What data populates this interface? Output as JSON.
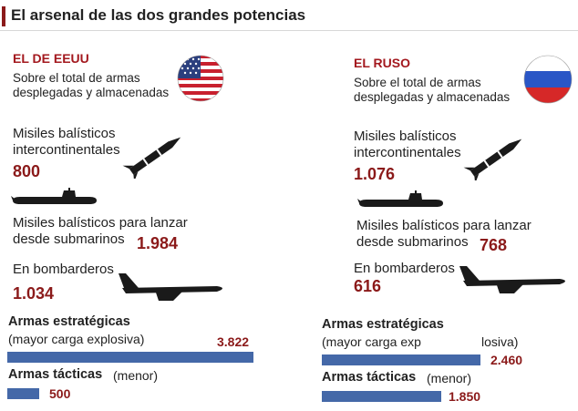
{
  "title": "El arsenal de las dos grandes potencias",
  "colors": {
    "accent": "#8b1a1a",
    "bar": "#4468a8",
    "country": "#a3181e"
  },
  "icons": {
    "flag_us": "us-flag-icon",
    "flag_ru": "russia-flag-icon",
    "missile": "missile-icon",
    "submarine": "submarine-icon",
    "bomber": "bomber-icon"
  },
  "usa": {
    "country": "EL DE EEUU",
    "subtitle_1": "Sobre el total de armas",
    "subtitle_2": "desplegadas y almacenadas",
    "icbm_label_1": "Misiles balísticos",
    "icbm_label_2": "intercontinentales",
    "icbm_value": "800",
    "slbm_label_1": "Misiles balísticos para lanzar",
    "slbm_label_2": "desde submarinos",
    "slbm_value": "1.984",
    "bomber_label": "En bombarderos",
    "bomber_value": "1.034",
    "strategic_label": "Armas estratégicas",
    "strategic_note": "(mayor carga explosiva)",
    "strategic_value": "3.822",
    "tactical_label": "Armas tácticas",
    "tactical_note": "(menor)",
    "tactical_value": "500"
  },
  "russia": {
    "country": "EL RUSO",
    "subtitle_1": "Sobre el total de armas",
    "subtitle_2": "desplegadas y almacenadas",
    "icbm_label_1": "Misiles balísticos",
    "icbm_label_2": "intercontinentales",
    "icbm_value": "1.076",
    "slbm_label_1": "Misiles balísticos para lanzar",
    "slbm_label_2": "desde submarinos",
    "slbm_value": "768",
    "bomber_label": "En bombarderos",
    "bomber_value": "616",
    "strategic_label": "Armas estratégicas",
    "strategic_note_a": "(mayor carga exp",
    "strategic_note_b": "losiva)",
    "strategic_value": "2.460",
    "tactical_label": "Armas tácticas",
    "tactical_note": "(menor)",
    "tactical_value": "1.850"
  },
  "chart_data": {
    "type": "bar",
    "title": "El arsenal de las dos grandes potencias",
    "series": [
      {
        "name": "EL DE EEUU",
        "categories": [
          "Armas estratégicas",
          "Armas tácticas"
        ],
        "values": [
          3822,
          500
        ]
      },
      {
        "name": "EL RUSO",
        "categories": [
          "Armas estratégicas",
          "Armas tácticas"
        ],
        "values": [
          2460,
          1850
        ]
      }
    ],
    "breakdown": {
      "categories": [
        "Misiles balísticos intercontinentales",
        "Misiles balísticos para lanzar desde submarinos",
        "En bombarderos"
      ],
      "EL DE EEUU": [
        800,
        1984,
        1034
      ],
      "EL RUSO": [
        1076,
        768,
        616
      ]
    }
  }
}
